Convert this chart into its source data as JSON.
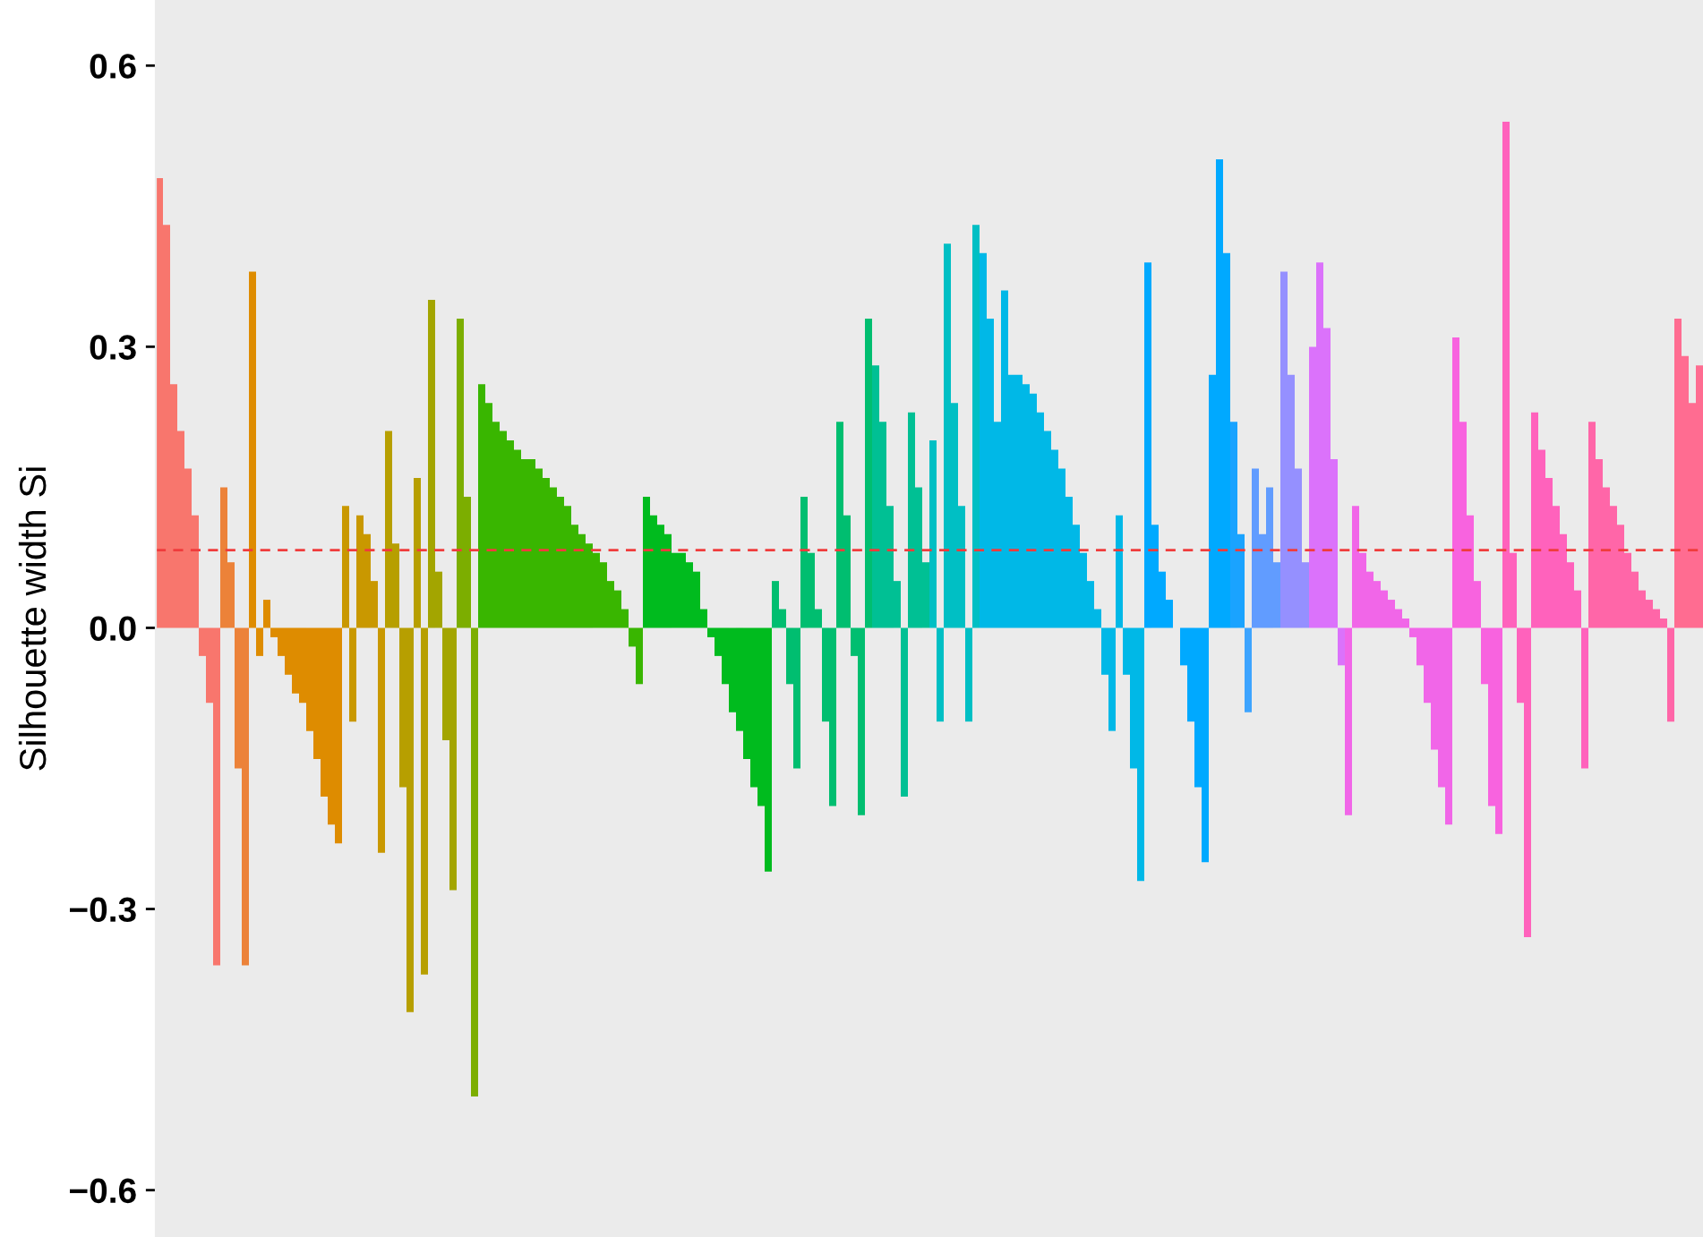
{
  "chart_data": {
    "type": "bar",
    "ylabel": "Silhouette width Si",
    "categories": [
      null,
      null,
      null,
      null,
      null,
      null,
      null,
      null,
      null,
      null,
      null,
      null,
      null,
      null,
      null,
      null,
      null,
      null,
      null,
      null,
      null,
      null,
      null,
      null,
      null,
      null,
      null,
      null,
      null,
      null,
      null,
      null,
      null,
      null,
      null,
      null,
      null,
      null,
      null,
      null,
      null,
      null,
      null,
      null,
      null,
      null,
      null,
      null,
      null,
      null,
      null,
      null,
      null,
      null,
      null,
      null,
      null,
      null,
      null,
      null,
      null,
      null,
      null,
      null,
      null,
      null,
      null,
      null,
      null,
      null,
      null,
      null,
      null,
      null,
      null,
      null,
      null,
      null,
      null,
      null,
      null,
      null,
      null,
      null,
      null,
      null,
      null,
      null,
      null,
      null,
      null,
      null,
      null,
      null,
      null,
      null,
      null,
      null,
      null,
      null,
      null,
      null,
      null,
      null,
      null,
      null,
      null,
      null,
      null,
      null,
      null,
      null,
      null,
      null,
      null,
      null,
      null,
      null,
      null,
      null,
      null,
      null,
      null,
      null,
      null,
      null,
      null,
      null,
      null,
      null,
      null,
      null,
      null,
      null,
      null,
      null,
      null,
      null,
      null,
      null,
      null,
      null,
      null,
      null,
      null,
      null,
      null,
      null,
      null,
      null,
      null,
      null,
      null,
      null,
      null,
      null,
      null,
      null,
      null,
      null,
      null,
      null,
      null,
      null,
      null,
      null,
      null,
      null,
      null,
      null,
      null,
      null,
      null,
      null,
      null,
      null,
      null,
      null,
      null,
      null,
      null,
      null,
      null,
      null,
      null,
      null,
      null,
      null,
      null,
      null,
      null,
      null,
      null,
      null,
      null,
      null,
      null,
      null,
      null,
      null,
      null,
      null,
      null,
      null,
      null,
      null,
      null,
      null,
      null,
      null,
      null,
      null,
      null,
      null,
      null,
      null
    ],
    "values": [
      0.48,
      0.43,
      0.26,
      0.21,
      0.17,
      0.12,
      -0.03,
      -0.08,
      -0.36,
      0.15,
      0.07,
      -0.15,
      -0.36,
      0.38,
      -0.03,
      0.03,
      -0.01,
      -0.03,
      -0.05,
      -0.07,
      -0.08,
      -0.11,
      -0.14,
      -0.18,
      -0.21,
      -0.23,
      0.13,
      -0.1,
      0.12,
      0.1,
      0.05,
      -0.24,
      0.21,
      0.09,
      -0.17,
      -0.41,
      0.16,
      -0.37,
      0.35,
      0.06,
      -0.12,
      -0.28,
      0.33,
      0.14,
      -0.5,
      0.26,
      0.24,
      0.22,
      0.21,
      0.2,
      0.19,
      0.18,
      0.18,
      0.17,
      0.16,
      0.15,
      0.14,
      0.13,
      0.11,
      0.1,
      0.09,
      0.08,
      0.07,
      0.05,
      0.04,
      0.02,
      -0.02,
      -0.06,
      0.14,
      0.12,
      0.11,
      0.1,
      0.08,
      0.08,
      0.07,
      0.06,
      0.02,
      -0.01,
      -0.03,
      -0.06,
      -0.09,
      -0.11,
      -0.14,
      -0.17,
      -0.19,
      -0.26,
      0.05,
      0.02,
      -0.06,
      -0.15,
      0.14,
      0.08,
      0.02,
      -0.1,
      -0.19,
      0.22,
      0.12,
      -0.03,
      -0.2,
      0.33,
      0.28,
      0.22,
      0.13,
      0.05,
      -0.18,
      0.23,
      0.15,
      0.07,
      0.2,
      -0.1,
      0.41,
      0.24,
      0.13,
      -0.1,
      0.43,
      0.4,
      0.33,
      0.22,
      0.36,
      0.27,
      0.27,
      0.26,
      0.25,
      0.23,
      0.21,
      0.19,
      0.17,
      0.14,
      0.11,
      0.08,
      0.05,
      0.02,
      -0.05,
      -0.11,
      0.12,
      -0.05,
      -0.15,
      -0.27,
      0.39,
      0.11,
      0.06,
      0.03,
      0.0,
      -0.04,
      -0.1,
      -0.17,
      -0.25,
      0.27,
      0.5,
      0.4,
      0.22,
      0.1,
      -0.09,
      0.17,
      0.1,
      0.15,
      0.07,
      0.38,
      0.27,
      0.17,
      0.07,
      0.3,
      0.39,
      0.32,
      0.18,
      -0.04,
      -0.2,
      0.13,
      0.08,
      0.06,
      0.05,
      0.04,
      0.03,
      0.02,
      0.01,
      -0.01,
      -0.04,
      -0.08,
      -0.13,
      -0.17,
      -0.21,
      0.31,
      0.22,
      0.12,
      0.05,
      -0.06,
      -0.19,
      -0.22,
      0.54,
      0.08,
      -0.08,
      -0.33,
      0.23,
      0.19,
      0.16,
      0.13,
      0.1,
      0.07,
      0.04,
      -0.15,
      0.22,
      0.18,
      0.15,
      0.13,
      0.11,
      0.08,
      0.06,
      0.04,
      0.03,
      0.02,
      0.01,
      -0.1,
      0.33,
      0.29,
      0.24,
      0.28
    ],
    "colors": [
      "#F8766D",
      "#F8766D",
      "#F8766D",
      "#F8766D",
      "#F8766D",
      "#F8766D",
      "#F8766D",
      "#F8766D",
      "#F8766D",
      "#EC8239",
      "#EC8239",
      "#EC8239",
      "#EC8239",
      "#DE8C00",
      "#DE8C00",
      "#DE8C00",
      "#DE8C00",
      "#DE8C00",
      "#DE8C00",
      "#DE8C00",
      "#DE8C00",
      "#DE8C00",
      "#DE8C00",
      "#DE8C00",
      "#DE8C00",
      "#DE8C00",
      "#C99800",
      "#C99800",
      "#C99800",
      "#C99800",
      "#C99800",
      "#C99800",
      "#B79F00",
      "#B79F00",
      "#B79F00",
      "#B79F00",
      "#B79F00",
      "#B79F00",
      "#A3A500",
      "#A3A500",
      "#A3A500",
      "#A3A500",
      "#7CAE00",
      "#7CAE00",
      "#7CAE00",
      "#39B600",
      "#39B600",
      "#39B600",
      "#39B600",
      "#39B600",
      "#39B600",
      "#39B600",
      "#39B600",
      "#39B600",
      "#39B600",
      "#39B600",
      "#39B600",
      "#39B600",
      "#39B600",
      "#39B600",
      "#39B600",
      "#39B600",
      "#39B600",
      "#39B600",
      "#39B600",
      "#39B600",
      "#39B600",
      "#39B600",
      "#00BB1E",
      "#00BB1E",
      "#00BB1E",
      "#00BB1E",
      "#00BB1E",
      "#00BB1E",
      "#00BB1E",
      "#00BB1E",
      "#00BB1E",
      "#00BB1E",
      "#00BB1E",
      "#00BB1E",
      "#00BB1E",
      "#00BB1E",
      "#00BB1E",
      "#00BB1E",
      "#00BB1E",
      "#00BB1E",
      "#00BE70",
      "#00BE70",
      "#00BE70",
      "#00BE70",
      "#00BE70",
      "#00BE70",
      "#00BE70",
      "#00BE70",
      "#00BE70",
      "#00BE70",
      "#00BE70",
      "#00BE70",
      "#00BE70",
      "#00BE70",
      "#00C094",
      "#00C094",
      "#00C094",
      "#00C094",
      "#00C094",
      "#00C094",
      "#00C094",
      "#00C094",
      "#00BFC4",
      "#00BFC4",
      "#00BFC4",
      "#00BFC4",
      "#00BFC4",
      "#00BFC4",
      "#00BFC4",
      "#00B8E7",
      "#00B8E7",
      "#00B8E7",
      "#00B8E7",
      "#00B8E7",
      "#00B8E7",
      "#00B8E7",
      "#00B8E7",
      "#00B8E7",
      "#00B8E7",
      "#00B8E7",
      "#00B8E7",
      "#00B8E7",
      "#00B8E7",
      "#00B8E7",
      "#00B8E7",
      "#00B8E7",
      "#00B8E7",
      "#00B8E7",
      "#00B8E7",
      "#00B8E7",
      "#00B8E7",
      "#00B8E7",
      "#00A9FF",
      "#00A9FF",
      "#00A9FF",
      "#00A9FF",
      "#00A9FF",
      "#00A9FF",
      "#00A9FF",
      "#00A9FF",
      "#00A9FF",
      "#00A9FF",
      "#00A9FF",
      "#00A9FF",
      "#1AA3FF",
      "#1AA3FF",
      "#3DA4FF",
      "#619CFF",
      "#619CFF",
      "#619CFF",
      "#619CFF",
      "#9590FF",
      "#9590FF",
      "#9590FF",
      "#9590FF",
      "#DB72FB",
      "#DB72FB",
      "#DB72FB",
      "#DB72FB",
      "#DB72FB",
      "#F166E8",
      "#F166E8",
      "#F166E8",
      "#F166E8",
      "#F166E8",
      "#F166E8",
      "#F166E8",
      "#F166E8",
      "#F166E8",
      "#F166E8",
      "#F166E8",
      "#F166E8",
      "#F166E8",
      "#F166E8",
      "#F166E8",
      "#F863DF",
      "#F863DF",
      "#F863DF",
      "#F863DF",
      "#F863DF",
      "#F863DF",
      "#F863DF",
      "#FF62BC",
      "#FF62BC",
      "#FF62BC",
      "#FF62BC",
      "#FF62BC",
      "#FF62BC",
      "#FF62BC",
      "#FF62BC",
      "#FF62BC",
      "#FF62BC",
      "#FF62BC",
      "#FF62BC",
      "#FF66A8",
      "#FF66A8",
      "#FF66A8",
      "#FF66A8",
      "#FF66A8",
      "#FF66A8",
      "#FF66A8",
      "#FF66A8",
      "#FF66A8",
      "#FF66A8",
      "#FF66A8",
      "#FF66A8",
      "#FF6C91",
      "#FF6C91",
      "#FF6C91",
      "#FF6C91"
    ],
    "ylim": [
      -0.65,
      0.67
    ],
    "yticks": [
      {
        "value": -0.6,
        "label": "−0.6"
      },
      {
        "value": -0.3,
        "label": "−0.3"
      },
      {
        "value": 0,
        "label": "0.0"
      },
      {
        "value": 0.3,
        "label": "0.3"
      },
      {
        "value": 0.6,
        "label": "0.6"
      }
    ],
    "ref_lines": [
      {
        "axis": "y",
        "value": 0.083,
        "color": "#F03C3C",
        "line_style": "dashed"
      }
    ],
    "tick_labels": "y",
    "grid": false
  }
}
